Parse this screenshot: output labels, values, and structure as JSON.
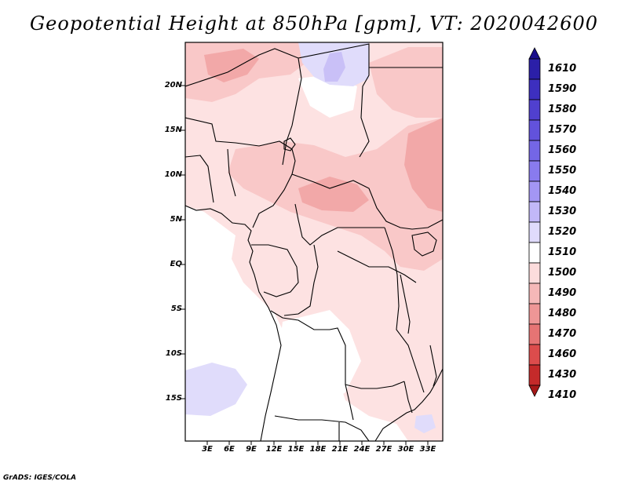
{
  "title": "Geopotential Height at 850hPa [gpm], VT: 2020042600",
  "credit": "GrADS: IGES/COLA",
  "map": {
    "variable": "Geopotential Height",
    "level": "850hPa",
    "units": "gpm",
    "valid_time": "2020042600",
    "lat_labels": [
      "20N",
      "15N",
      "10N",
      "5N",
      "EQ",
      "5S",
      "10S",
      "15S"
    ],
    "lon_labels": [
      "3E",
      "6E",
      "9E",
      "12E",
      "15E",
      "18E",
      "21E",
      "24E",
      "27E",
      "30E",
      "33E"
    ]
  },
  "colorbar": {
    "labels": [
      "1610",
      "1590",
      "1580",
      "1570",
      "1560",
      "1550",
      "1540",
      "1530",
      "1520",
      "1510",
      "1500",
      "1490",
      "1480",
      "1470",
      "1460",
      "1430",
      "1410"
    ],
    "colors": [
      "#1a0d8c",
      "#2b1fa8",
      "#3d2fbf",
      "#5040cf",
      "#6252dc",
      "#7466e6",
      "#897bee",
      "#a396f4",
      "#c2b8f8",
      "#e0dbfc",
      "#ffffff",
      "#fcdcdc",
      "#f5b8b8",
      "#ee9696",
      "#e67474",
      "#dc4c4c",
      "#c42a2a",
      "#a51818"
    ]
  }
}
